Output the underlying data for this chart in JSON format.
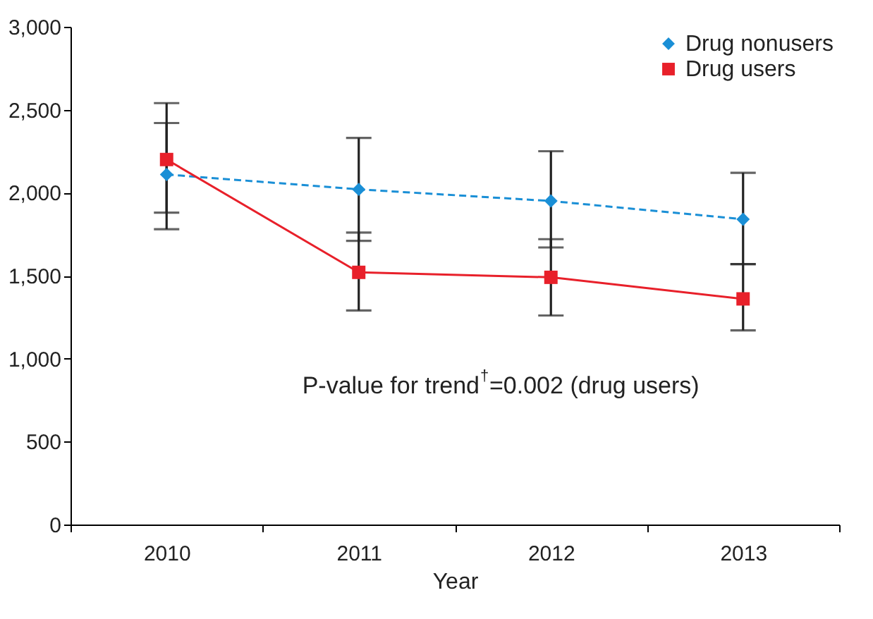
{
  "chart_data": {
    "type": "line",
    "xlabel": "Year",
    "categories": [
      "2010",
      "2011",
      "2012",
      "2013"
    ],
    "series": [
      {
        "name": "Drug nonusers",
        "color": "#1a8fd6",
        "marker": "diamond",
        "line_style": "dashed",
        "values": [
          2110,
          2020,
          1950,
          1840
        ],
        "errors": [
          [
            1780,
            2420
          ],
          [
            1710,
            2330
          ],
          [
            1670,
            2250
          ],
          [
            1570,
            2120
          ]
        ]
      },
      {
        "name": "Drug users",
        "color": "#e8202a",
        "marker": "square",
        "line_style": "solid",
        "values": [
          2200,
          1520,
          1490,
          1360
        ],
        "errors": [
          [
            1880,
            2540
          ],
          [
            1290,
            1760
          ],
          [
            1260,
            1720
          ],
          [
            1170,
            1570
          ]
        ]
      }
    ],
    "ylim": [
      0,
      3000
    ],
    "yticks": [
      0,
      500,
      {
        "value": 1000,
        "label": "1,000"
      },
      {
        "value": 1500,
        "label": "1,500"
      },
      {
        "value": 2000,
        "label": "2,000"
      },
      {
        "value": 2500,
        "label": "2,500"
      },
      {
        "value": 3000,
        "label": "3,000"
      }
    ],
    "grid": false,
    "legend": "top right",
    "annotations": [
      "P-value for trend$^{†}$=0.002 (drug users)"
    ]
  }
}
